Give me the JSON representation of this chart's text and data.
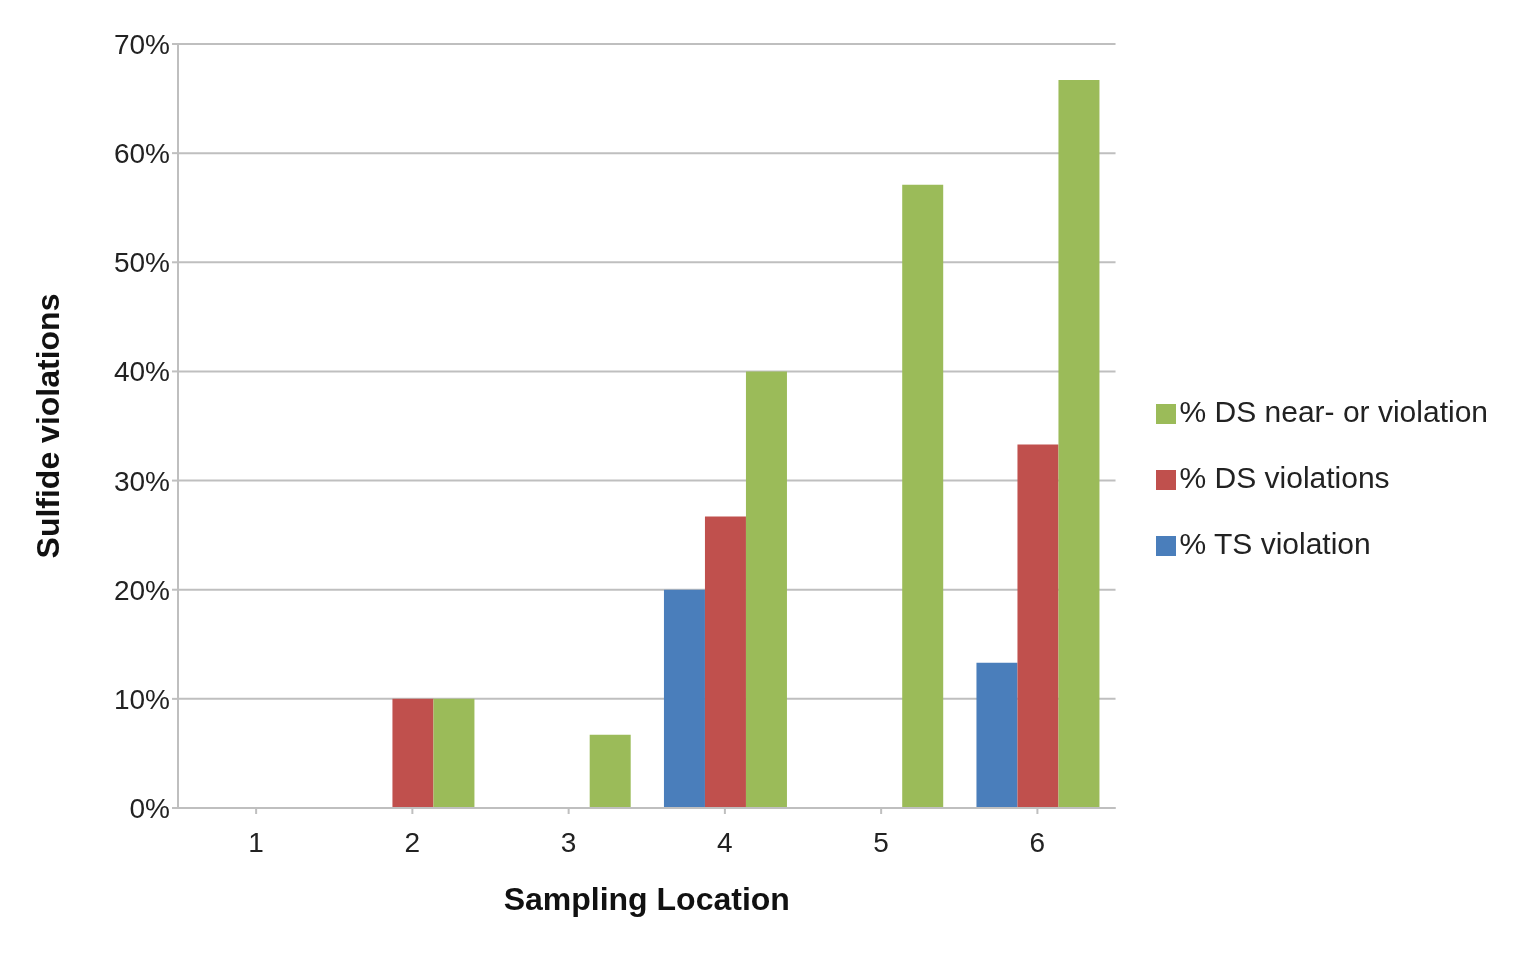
{
  "chart_data": {
    "type": "bar",
    "xlabel": "Sampling Location",
    "ylabel": "Sulfide violations",
    "categories": [
      "1",
      "2",
      "3",
      "4",
      "5",
      "6"
    ],
    "series": [
      {
        "name": "% TS violation",
        "color": "#4a7ebb",
        "values": [
          0,
          0,
          0,
          20,
          0,
          13.3
        ]
      },
      {
        "name": "% DS violations",
        "color": "#c0504d",
        "values": [
          0,
          10,
          0,
          26.7,
          0,
          33.3
        ]
      },
      {
        "name": "% DS near- or violation",
        "color": "#9bbb59",
        "values": [
          0,
          10,
          6.7,
          40,
          57.1,
          66.7
        ]
      }
    ],
    "ylim": [
      0,
      70
    ],
    "yticks": [
      {
        "value": 0,
        "label": "0%"
      },
      {
        "value": 10,
        "label": "10%"
      },
      {
        "value": 20,
        "label": "20%"
      },
      {
        "value": 30,
        "label": "30%"
      },
      {
        "value": 40,
        "label": "40%"
      },
      {
        "value": 50,
        "label": "50%"
      },
      {
        "value": 60,
        "label": "60%"
      },
      {
        "value": 70,
        "label": "70%"
      }
    ],
    "grid": "y",
    "legend": "right"
  }
}
